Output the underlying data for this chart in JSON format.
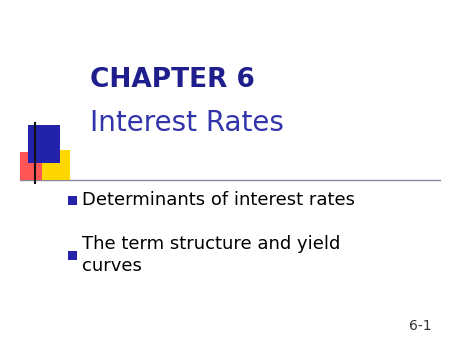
{
  "background_color": "#ffffff",
  "title_line1": "CHAPTER 6",
  "title_line2": "Interest Rates",
  "title_color": "#1E1E8C",
  "subtitle_color": "#3333AA",
  "bullet_color": "#000000",
  "bullet_marker_color": "#2222AA",
  "bullets": [
    "Determinants of interest rates",
    "The term structure and yield\ncurves"
  ],
  "slide_number": "6-1",
  "slide_number_color": "#333333",
  "deco_blue": "#2222AA",
  "deco_yellow": "#FFD700",
  "deco_red": "#FF5555",
  "line_color": "#888899",
  "title1_fontsize": 19,
  "title2_fontsize": 20,
  "bullet_fontsize": 13,
  "slide_num_fontsize": 10
}
